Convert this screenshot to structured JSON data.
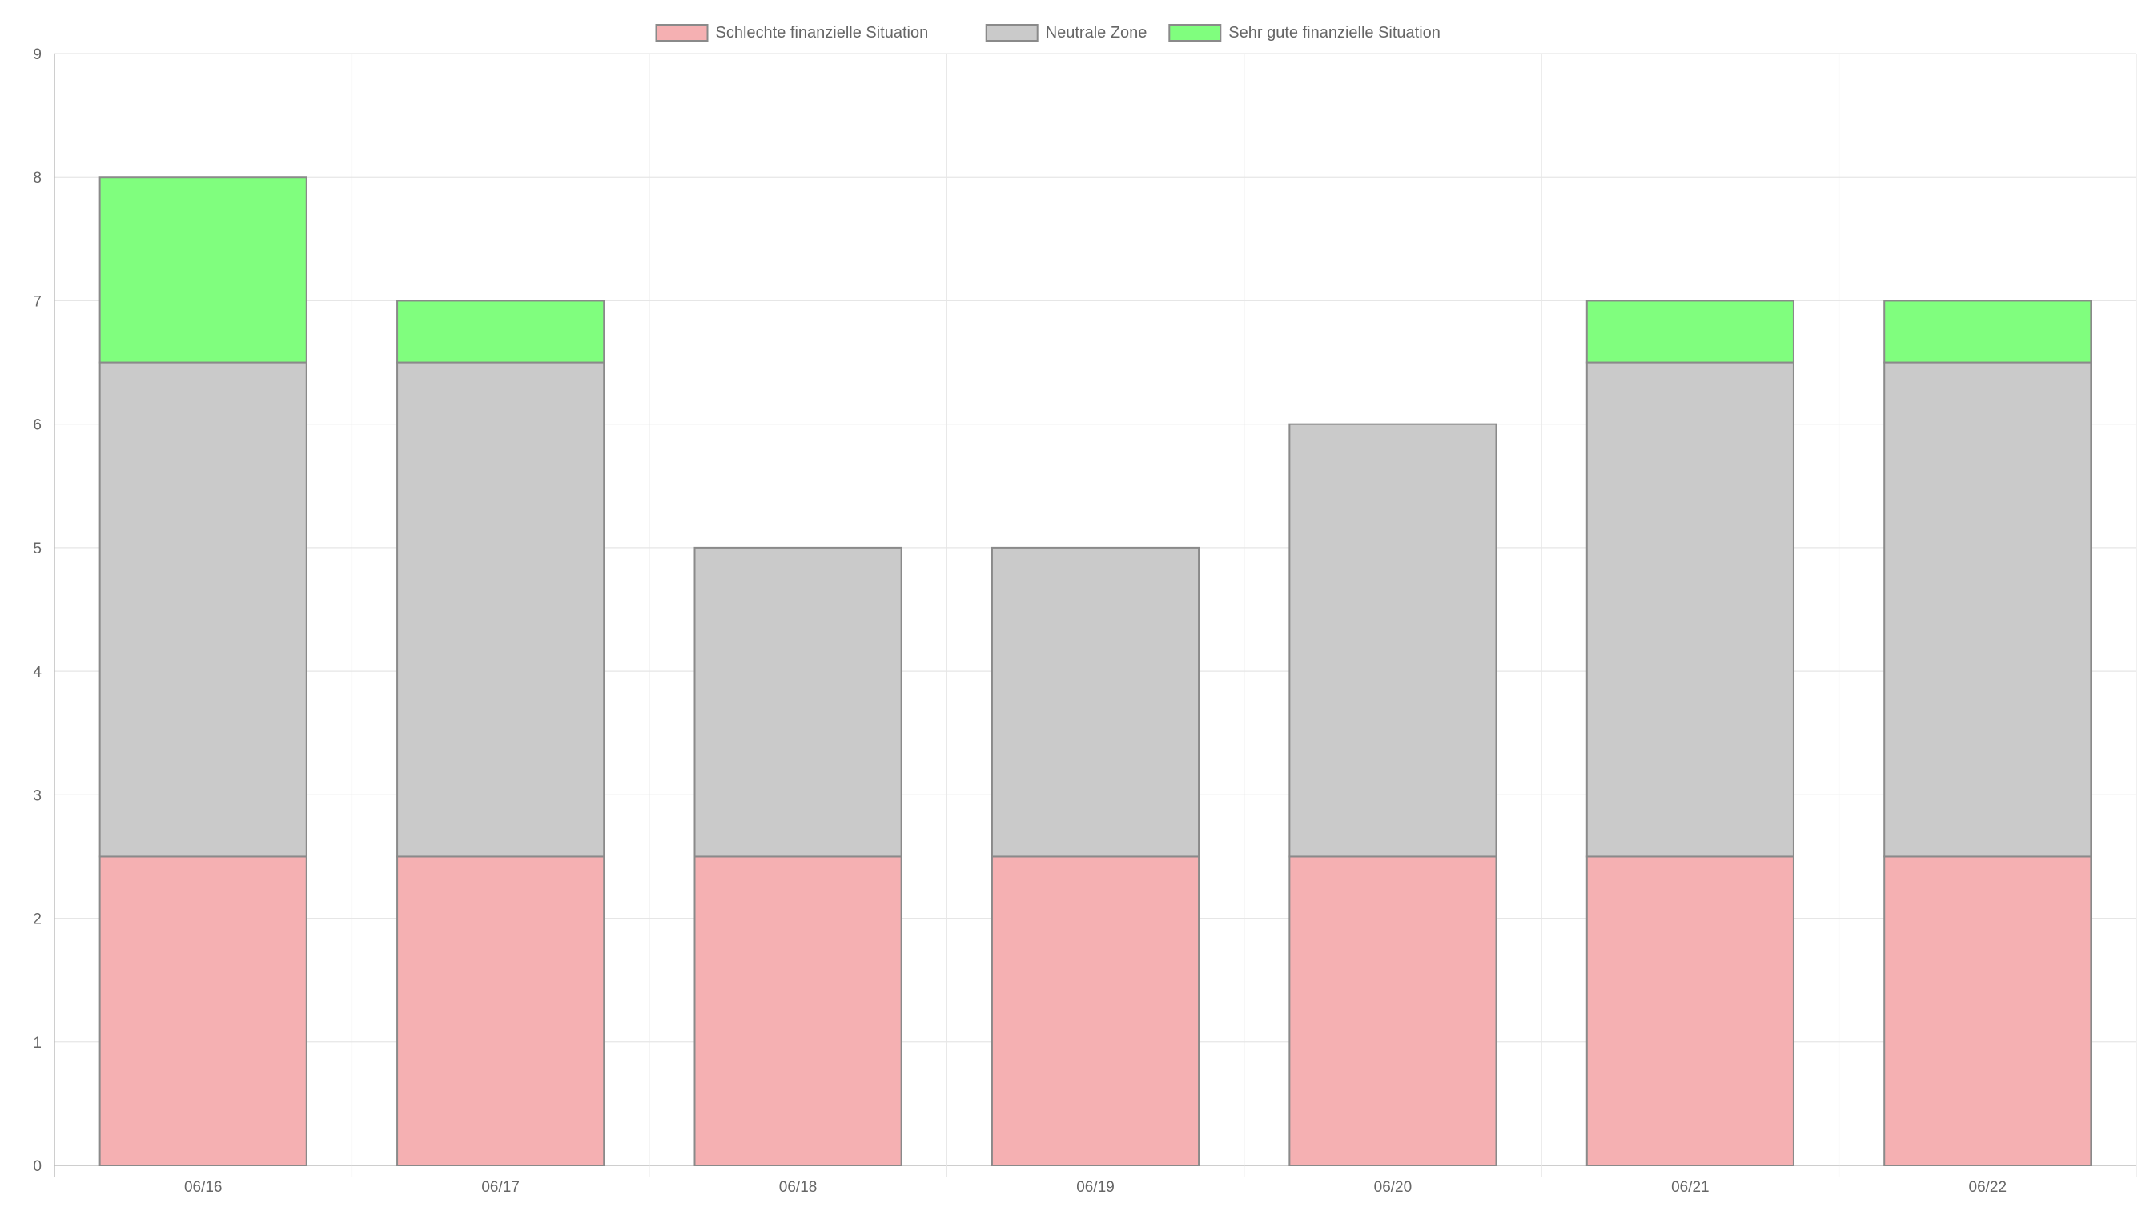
{
  "chart_data": {
    "type": "bar",
    "stacked": true,
    "title": "",
    "xlabel": "",
    "ylabel": "",
    "categories": [
      "06/16",
      "06/17",
      "06/18",
      "06/19",
      "06/20",
      "06/21",
      "06/22"
    ],
    "series": [
      {
        "name": "Schlechte finanzielle Situation",
        "values": [
          2.5,
          2.5,
          2.5,
          2.5,
          2.5,
          2.5,
          2.5
        ],
        "color": "#f5b0b2",
        "border": "#8a8a8a"
      },
      {
        "name": "Neutrale Zone",
        "values": [
          4,
          4,
          2.5,
          2.5,
          3.5,
          4,
          4
        ],
        "color": "#cacaca",
        "border": "#8a8a8a"
      },
      {
        "name": "Sehr gute finanzielle Situation",
        "values": [
          1.5,
          0.5,
          0,
          0,
          0,
          0.5,
          0.5
        ],
        "color": "#80fe7e",
        "border": "#8a8a8a"
      }
    ],
    "ylim": [
      0,
      9
    ],
    "yticks": [
      0,
      1,
      2,
      3,
      4,
      5,
      6,
      7,
      8,
      9
    ],
    "grid": true,
    "legend_position": "top"
  }
}
